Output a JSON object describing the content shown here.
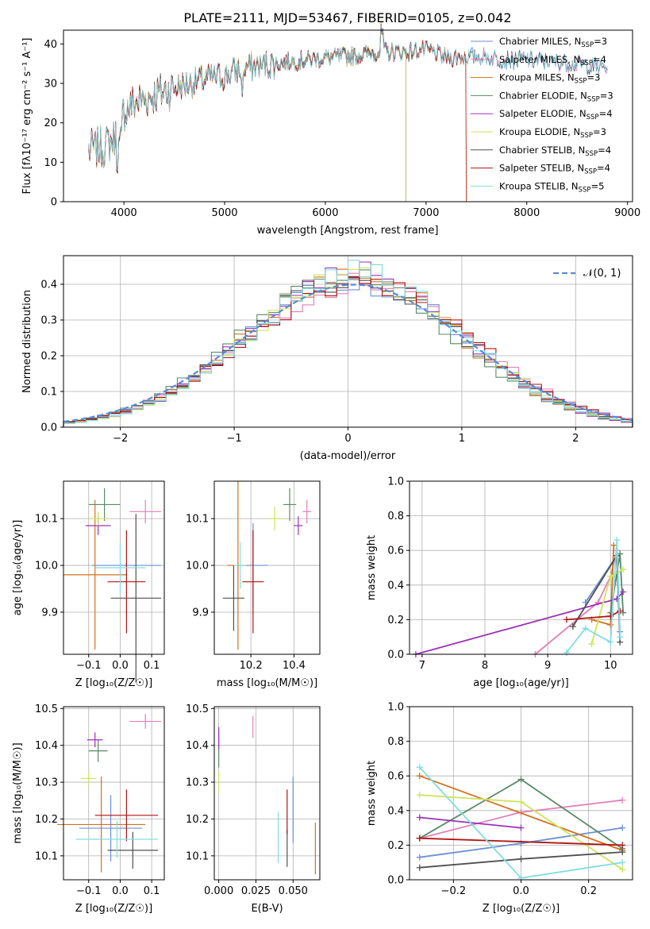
{
  "colors": [
    "#6a8fd6",
    "#e27fb8",
    "#d0721f",
    "#5a8a66",
    "#9b32b5",
    "#cfe35a",
    "#505050",
    "#b01313",
    "#80dde2"
  ],
  "spectrum": {
    "title": "PLATE=2111, MJD=53467, FIBERID=0105, z=0.042",
    "xlabel": "wavelength [Angstrom, rest frame]",
    "ylabel": "Flux [fλ10⁻¹⁷ erg cm⁻² s⁻¹ A⁻¹]",
    "xticks": [
      "4000",
      "5000",
      "6000",
      "7000",
      "8000",
      "9000"
    ],
    "yticks": [
      "0",
      "10",
      "20",
      "30",
      "40"
    ],
    "legend": [
      "Chabrier MILES, N_SSP=3",
      "Salpeter MILES, N_SSP=4",
      "Kroupa MILES, N_SSP=3",
      "Chabrier ELODIE, N_SSP=3",
      "Salpeter ELODIE, N_SSP=4",
      "Kroupa ELODIE, N_SSP=3",
      "Chabrier STELIB, N_SSP=4",
      "Salpeter STELIB, N_SSP=4",
      "Kroupa STELIB, N_SSP=5"
    ]
  },
  "residuals": {
    "xlabel": "(data-model)/error",
    "ylabel": "Normed distribution",
    "legend": "𝒩(0, 1)",
    "xticks": [
      "−2",
      "−1",
      "0",
      "1",
      "2"
    ],
    "yticks": [
      "0.0",
      "0.1",
      "0.2",
      "0.3",
      "0.4"
    ]
  },
  "panels": {
    "age_z": {
      "xlabel": "Z [log₁₀(Z/Z☉)]",
      "ylabel": "age  [log₁₀(age/yr)]",
      "xticks": [
        "−0.1",
        "0.0",
        "0.1"
      ],
      "yticks": [
        "9.9",
        "10.0",
        "10.1"
      ]
    },
    "age_mass": {
      "xlabel": "mass [log₁₀(M/M☉)]",
      "xticks": [
        "10.2",
        "10.4"
      ],
      "yticks": [
        "9.9",
        "10.0",
        "10.1"
      ]
    },
    "mw_age": {
      "xlabel": "age  [log₁₀(age/yr)]",
      "ylabel": "mass weight",
      "xticks": [
        "7",
        "8",
        "9",
        "10"
      ],
      "yticks": [
        "0.0",
        "0.2",
        "0.4",
        "0.6",
        "0.8",
        "1.0"
      ]
    },
    "mass_z": {
      "xlabel": "Z [log₁₀(Z/Z☉)]",
      "ylabel": "mass [log₁₀(M/M☉)]",
      "xticks": [
        "−0.1",
        "0.0",
        "0.1"
      ],
      "yticks": [
        "10.1",
        "10.2",
        "10.3",
        "10.4",
        "10.5"
      ]
    },
    "mass_ebv": {
      "xlabel": "E(B-V)",
      "xticks": [
        "0.000",
        "0.025",
        "0.050"
      ],
      "yticks": [
        "10.1",
        "10.2",
        "10.3",
        "10.4",
        "10.5"
      ]
    },
    "mw_z": {
      "xlabel": "Z [log₁₀(Z/Z☉)]",
      "ylabel": "mass weight",
      "xticks": [
        "−0.2",
        "0.0",
        "0.2"
      ],
      "yticks": [
        "0.0",
        "0.2",
        "0.4",
        "0.6",
        "0.8",
        "1.0"
      ]
    }
  },
  "chart_data": [
    {
      "type": "line",
      "title": "PLATE=2111, MJD=53467, FIBERID=0105, z=0.042",
      "xlabel": "wavelength [Angstrom, rest frame]",
      "ylabel": "Flux [fλ10⁻¹⁷ erg cm⁻² s⁻¹ A⁻¹]",
      "xlim": [
        3400,
        9050
      ],
      "ylim": [
        0,
        43.5
      ],
      "continuum_x": [
        3650,
        3800,
        3900,
        4000,
        4100,
        4300,
        4500,
        4800,
        5000,
        5200,
        5500,
        5800,
        6000,
        6300,
        6500,
        6800,
        7000,
        7200,
        7500,
        7800,
        8000,
        8200,
        8500,
        8800
      ],
      "continuum_y": [
        13,
        14,
        16,
        23,
        25,
        27,
        29,
        31,
        32,
        34,
        35,
        36,
        36.5,
        37,
        38,
        38,
        38.5,
        36.5,
        37,
        36,
        36,
        35.5,
        35,
        34
      ],
      "series": [
        {
          "name": "Chabrier MILES, N_SSP=3",
          "xmax": 8800
        },
        {
          "name": "Salpeter MILES, N_SSP=4",
          "xmax": 8800
        },
        {
          "name": "Kroupa MILES, N_SSP=3",
          "xmax": 7400
        },
        {
          "name": "Chabrier ELODIE, N_SSP=3",
          "xmax": 6800
        },
        {
          "name": "Salpeter ELODIE, N_SSP=4",
          "xmax": 6800
        },
        {
          "name": "Kroupa ELODIE, N_SSP=3",
          "xmax": 6800
        },
        {
          "name": "Chabrier STELIB, N_SSP=4",
          "xmax": 8800
        },
        {
          "name": "Salpeter STELIB, N_SSP=4",
          "xmax": 7400
        },
        {
          "name": "Kroupa STELIB, N_SSP=5",
          "xmax": 8800
        }
      ]
    },
    {
      "type": "area",
      "xlabel": "(data-model)/error",
      "ylabel": "Normed distribution",
      "xlim": [
        -2.5,
        2.5
      ],
      "ylim": [
        0,
        0.48
      ],
      "reference": {
        "name": "𝒩(0, 1)",
        "mean": 0,
        "sigma": 1,
        "note": "dashed curve, slightly shifted: peak near 0.05"
      },
      "bin_width": 0.1,
      "histogram_shape": "stepped histograms of 9 fits, mean ~0.05, sigma ~0.95, peak ~0.43-0.46"
    },
    {
      "type": "scatter",
      "xlabel": "Z [log₁₀(Z/Z☉)]",
      "ylabel": "age  [log₁₀(age/yr)]",
      "xlim": [
        -0.18,
        0.14
      ],
      "ylim": [
        9.81,
        10.18
      ],
      "points": [
        {
          "x": 0.02,
          "y": 10.0,
          "xerr": 0.11,
          "yerr": 0.005
        },
        {
          "x": 0.08,
          "y": 10.115,
          "xerr": 0.05,
          "yerr": 0.025
        },
        {
          "x": -0.08,
          "y": 9.98,
          "xerr": 0.1,
          "yerr": 0.16
        },
        {
          "x": -0.05,
          "y": 10.13,
          "xerr": 0.05,
          "yerr": 0.035
        },
        {
          "x": -0.07,
          "y": 10.085,
          "xerr": 0.04,
          "yerr": 0.02
        },
        {
          "x": -0.07,
          "y": 10.1,
          "xerr": 0.03,
          "yerr": 0.015
        },
        {
          "x": 0.05,
          "y": 9.93,
          "xerr": 0.08,
          "yerr": 0.18
        },
        {
          "x": 0.02,
          "y": 9.965,
          "xerr": 0.06,
          "yerr": 0.11
        },
        {
          "x": 0.0,
          "y": 9.995,
          "xerr": 0.08,
          "yerr": 0.055
        }
      ]
    },
    {
      "type": "scatter",
      "xlabel": "mass [log₁₀(M/M☉)]",
      "xlim": [
        10.03,
        10.52
      ],
      "ylim": [
        9.81,
        10.18
      ],
      "points": [
        {
          "x": 10.21,
          "y": 10.0,
          "xerr": 0.07,
          "yerr": 0.09
        },
        {
          "x": 10.46,
          "y": 10.115,
          "xerr": 0.02,
          "yerr": 0.025
        },
        {
          "x": 10.14,
          "y": 10.0,
          "xerr": 0.05,
          "yerr": 0.18
        },
        {
          "x": 10.38,
          "y": 10.13,
          "xerr": 0.03,
          "yerr": 0.035
        },
        {
          "x": 10.42,
          "y": 10.085,
          "xerr": 0.02,
          "yerr": 0.02
        },
        {
          "x": 10.31,
          "y": 10.1,
          "xerr": 0.03,
          "yerr": 0.025
        },
        {
          "x": 10.12,
          "y": 9.93,
          "xerr": 0.05,
          "yerr": 0.07
        },
        {
          "x": 10.21,
          "y": 9.965,
          "xerr": 0.05,
          "yerr": 0.11
        },
        {
          "x": 10.15,
          "y": 10.0,
          "xerr": 0.03,
          "yerr": 0.05
        }
      ]
    },
    {
      "type": "line",
      "xlabel": "age  [log₁₀(age/yr)]",
      "ylabel": "mass weight",
      "xlim": [
        6.8,
        10.35
      ],
      "ylim": [
        0,
        1.0
      ],
      "series": [
        {
          "x": [
            9.6,
            10.1,
            10.15
          ],
          "y": [
            0.3,
            0.57,
            0.13
          ]
        },
        {
          "x": [
            8.8,
            9.8,
            10.0,
            10.1
          ],
          "y": [
            0.0,
            0.3,
            0.45,
            0.6
          ]
        },
        {
          "x": [
            9.7,
            10.0,
            10.05
          ],
          "y": [
            0.2,
            0.17,
            0.63
          ]
        },
        {
          "x": [
            10.0,
            10.15,
            10.2
          ],
          "y": [
            0.24,
            0.58,
            0.24
          ]
        },
        {
          "x": [
            6.9,
            10.1,
            10.2
          ],
          "y": [
            0.0,
            0.32,
            0.36
          ]
        },
        {
          "x": [
            9.7,
            10.0,
            10.2
          ],
          "y": [
            0.06,
            0.45,
            0.49
          ]
        },
        {
          "x": [
            9.4,
            10.1,
            10.15
          ],
          "y": [
            0.16,
            0.57,
            0.07
          ]
        },
        {
          "x": [
            9.3,
            10.0,
            10.15
          ],
          "y": [
            0.2,
            0.22,
            0.25
          ]
        },
        {
          "x": [
            9.3,
            9.6,
            10.0,
            10.1,
            10.15
          ],
          "y": [
            0.01,
            0.15,
            0.07,
            0.66,
            0.1
          ]
        }
      ]
    },
    {
      "type": "scatter",
      "xlabel": "Z [log₁₀(Z/Z☉)]",
      "ylabel": "mass [log₁₀(M/M☉)]",
      "xlim": [
        -0.18,
        0.14
      ],
      "ylim": [
        10.035,
        10.505
      ],
      "points": [
        {
          "x": -0.03,
          "y": 10.175,
          "xerr": 0.1,
          "yerr": 0.09
        },
        {
          "x": 0.08,
          "y": 10.465,
          "xerr": 0.05,
          "yerr": 0.02
        },
        {
          "x": -0.06,
          "y": 10.185,
          "xerr": 0.14,
          "yerr": 0.13
        },
        {
          "x": -0.07,
          "y": 10.385,
          "xerr": 0.03,
          "yerr": 0.03
        },
        {
          "x": -0.08,
          "y": 10.415,
          "xerr": 0.025,
          "yerr": 0.02
        },
        {
          "x": -0.1,
          "y": 10.31,
          "xerr": 0.025,
          "yerr": 0.02
        },
        {
          "x": 0.04,
          "y": 10.115,
          "xerr": 0.08,
          "yerr": 0.05
        },
        {
          "x": 0.02,
          "y": 10.21,
          "xerr": 0.1,
          "yerr": 0.07
        },
        {
          "x": -0.01,
          "y": 10.145,
          "xerr": 0.13,
          "yerr": 0.05
        }
      ]
    },
    {
      "type": "scatter",
      "xlabel": "E(B-V)",
      "xlim": [
        -0.003,
        0.068
      ],
      "ylim": [
        10.035,
        10.505
      ],
      "points": [
        {
          "x": 0.05,
          "y": 10.225,
          "xerr": 0,
          "yerr": 0.09
        },
        {
          "x": 0.023,
          "y": 10.45,
          "xerr": 0,
          "yerr": 0.03
        },
        {
          "x": 0.065,
          "y": 10.12,
          "xerr": 0,
          "yerr": 0.07
        },
        {
          "x": 0.0,
          "y": 10.39,
          "xerr": 0,
          "yerr": 0.05
        },
        {
          "x": 0.0,
          "y": 10.42,
          "xerr": 0,
          "yerr": 0.03
        },
        {
          "x": 0.0,
          "y": 10.3,
          "xerr": 0,
          "yerr": 0.03
        },
        {
          "x": 0.046,
          "y": 10.12,
          "xerr": 0,
          "yerr": 0.05
        },
        {
          "x": 0.046,
          "y": 10.22,
          "xerr": 0,
          "yerr": 0.06
        },
        {
          "x": 0.04,
          "y": 10.15,
          "xerr": 0,
          "yerr": 0.07
        }
      ]
    },
    {
      "type": "line",
      "xlabel": "Z [log₁₀(Z/Z☉)]",
      "ylabel": "mass weight",
      "xlim": [
        -0.33,
        0.33
      ],
      "ylim": [
        0,
        1.0
      ],
      "series": [
        {
          "x": [
            -0.3,
            0.0,
            0.3
          ],
          "y": [
            0.13,
            0.21,
            0.3
          ]
        },
        {
          "x": [
            -0.3,
            0.0,
            0.3
          ],
          "y": [
            0.24,
            0.39,
            0.46
          ]
        },
        {
          "x": [
            -0.3,
            0.3
          ],
          "y": [
            0.6,
            0.17
          ]
        },
        {
          "x": [
            -0.3,
            0.0,
            0.3
          ],
          "y": [
            0.24,
            0.58,
            0.18
          ]
        },
        {
          "x": [
            -0.3,
            0.0
          ],
          "y": [
            0.36,
            0.3
          ]
        },
        {
          "x": [
            -0.3,
            0.0,
            0.3
          ],
          "y": [
            0.49,
            0.45,
            0.06
          ]
        },
        {
          "x": [
            -0.3,
            0.0,
            0.3
          ],
          "y": [
            0.07,
            0.12,
            0.16
          ]
        },
        {
          "x": [
            -0.3,
            0.3
          ],
          "y": [
            0.24,
            0.2
          ]
        },
        {
          "x": [
            -0.3,
            0.0,
            0.3
          ],
          "y": [
            0.65,
            0.01,
            0.1
          ]
        }
      ]
    }
  ]
}
